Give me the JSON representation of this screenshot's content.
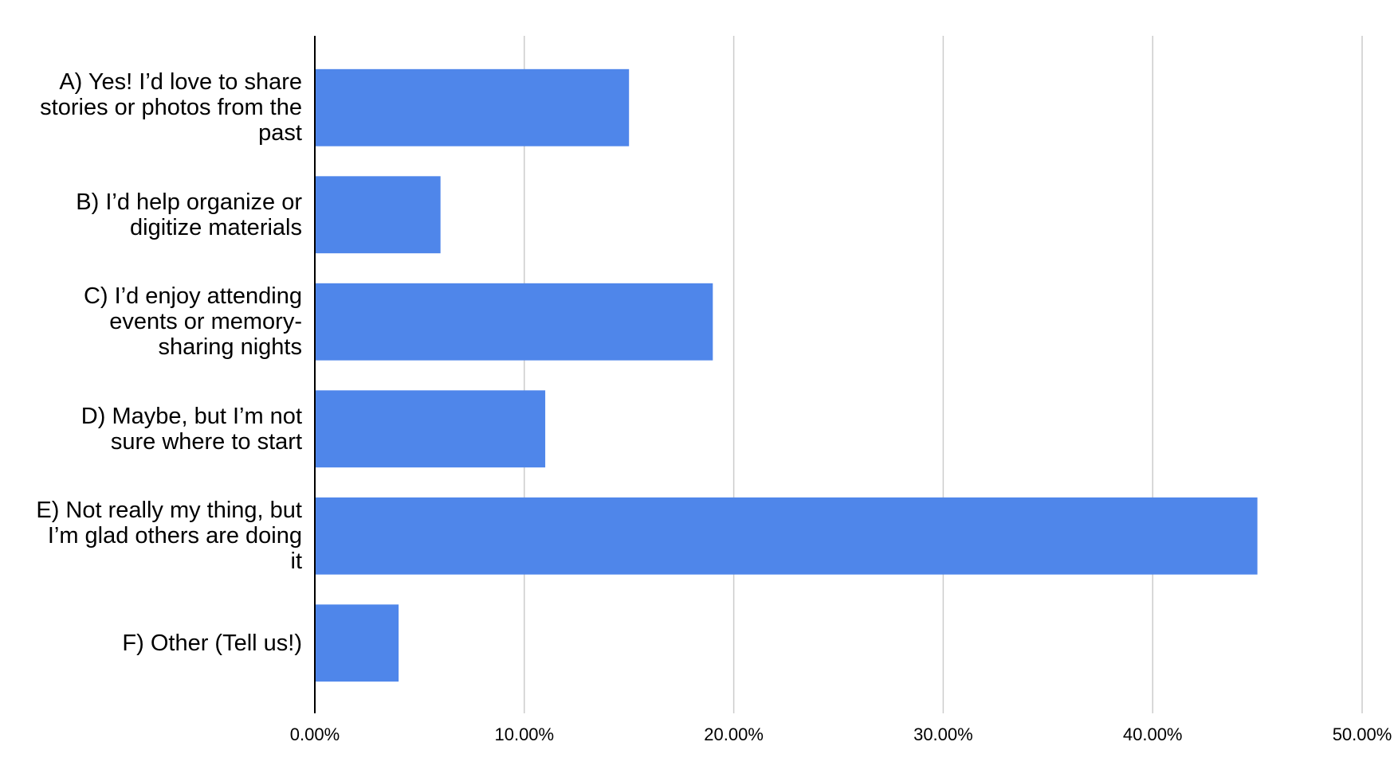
{
  "chart_data": {
    "type": "bar",
    "orientation": "horizontal",
    "categories": [
      "A) Yes! I’d love to share stories or photos from the past",
      "B) I’d help organize or digitize materials",
      "C) I’d enjoy attending events or memory-sharing nights",
      "D) Maybe, but I’m not sure where to start",
      "E) Not really my thing, but I’m glad others are doing it",
      "F) Other (Tell us!)"
    ],
    "values": [
      15,
      6,
      19,
      11,
      45,
      4
    ],
    "color": "#4f86ea",
    "xlim": [
      0,
      50
    ],
    "xticks": [
      {
        "value": 0,
        "label": "0.00%"
      },
      {
        "value": 10,
        "label": "10.00%"
      },
      {
        "value": 20,
        "label": "20.00%"
      },
      {
        "value": 30,
        "label": "30.00%"
      },
      {
        "value": 40,
        "label": "40.00%"
      },
      {
        "value": 50,
        "label": "50.00%"
      }
    ],
    "grid": true
  }
}
